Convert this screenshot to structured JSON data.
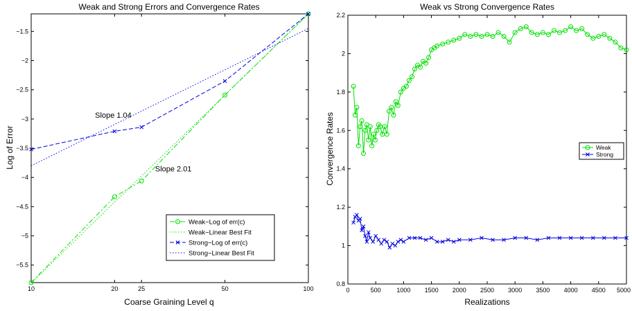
{
  "chart_data": [
    {
      "type": "line",
      "title": "Weak and Strong Errors and Convergence Rates",
      "xlabel": "Coarse Graining Level q",
      "ylabel": "Log of Error",
      "xscale": "log",
      "xlim": [
        10,
        100
      ],
      "ylim": [
        -5.8,
        -1.2
      ],
      "xticks": [
        10,
        20,
        25,
        50,
        100
      ],
      "yticks": [
        -5.5,
        -5,
        -4.5,
        -4,
        -3.5,
        -3,
        -2.5,
        -2,
        -1.5
      ],
      "grid": false,
      "legend_position": "bottom-right",
      "annotations": [
        {
          "text": "Slope 1.04",
          "x": 17,
          "y": -2.98
        },
        {
          "text": "Slope 2.01",
          "x": 28,
          "y": -3.9
        }
      ],
      "series": [
        {
          "name": "Weak−Log of err(c)",
          "x": [
            10,
            20,
            25,
            50,
            100
          ],
          "y": [
            -5.8,
            -4.33,
            -4.06,
            -2.59,
            -1.2
          ],
          "color": "#00e000",
          "marker": "circle",
          "dash": "dashdot"
        },
        {
          "name": "Weak−Linear Best Fit",
          "x": [
            10,
            100
          ],
          "y": [
            -5.81,
            -1.2
          ],
          "color": "#00e000",
          "marker": "none",
          "dash": "dotted"
        },
        {
          "name": "Strong−Log of err(c)",
          "x": [
            10,
            20,
            25,
            50,
            100
          ],
          "y": [
            -3.52,
            -3.21,
            -3.14,
            -2.35,
            -1.2
          ],
          "color": "#0000e0",
          "marker": "x",
          "dash": "dashed"
        },
        {
          "name": "Strong−Linear Best Fit",
          "x": [
            10,
            100
          ],
          "y": [
            -3.8,
            -1.45
          ],
          "color": "#0000e0",
          "marker": "none",
          "dash": "dotted"
        }
      ]
    },
    {
      "type": "line",
      "title": "Weak vs Strong Convergence Rates",
      "xlabel": "Realizations",
      "ylabel": "Convergence Rates",
      "xlim": [
        0,
        5000
      ],
      "ylim": [
        0.8,
        2.2
      ],
      "xticks": [
        0,
        500,
        1000,
        1500,
        2000,
        2500,
        3000,
        3500,
        4000,
        4500,
        5000
      ],
      "yticks": [
        0.8,
        1,
        1.2,
        1.4,
        1.6,
        1.8,
        2,
        2.2
      ],
      "grid": false,
      "legend_position": "middle-right",
      "series": [
        {
          "name": "Weak",
          "color": "#00e000",
          "marker": "circle",
          "x": [
            100,
            130,
            160,
            190,
            220,
            250,
            280,
            310,
            340,
            370,
            400,
            430,
            460,
            490,
            520,
            550,
            580,
            620,
            660,
            700,
            740,
            780,
            820,
            860,
            900,
            950,
            1000,
            1050,
            1100,
            1150,
            1200,
            1250,
            1300,
            1350,
            1400,
            1450,
            1500,
            1550,
            1600,
            1700,
            1800,
            1900,
            2000,
            2100,
            2200,
            2300,
            2400,
            2500,
            2600,
            2700,
            2800,
            2900,
            3000,
            3100,
            3200,
            3300,
            3400,
            3500,
            3600,
            3700,
            3800,
            3900,
            4000,
            4100,
            4200,
            4300,
            4400,
            4500,
            4600,
            4700,
            4800,
            4900,
            5000
          ],
          "y": [
            1.83,
            1.68,
            1.72,
            1.52,
            1.62,
            1.65,
            1.48,
            1.6,
            1.63,
            1.55,
            1.62,
            1.52,
            1.58,
            1.55,
            1.6,
            1.63,
            1.62,
            1.58,
            1.62,
            1.58,
            1.7,
            1.72,
            1.68,
            1.75,
            1.73,
            1.8,
            1.82,
            1.83,
            1.86,
            1.88,
            1.92,
            1.94,
            1.93,
            1.96,
            1.95,
            1.98,
            2.02,
            2.03,
            2.04,
            2.05,
            2.06,
            2.07,
            2.08,
            2.1,
            2.09,
            2.1,
            2.09,
            2.1,
            2.09,
            2.11,
            2.09,
            2.06,
            2.11,
            2.13,
            2.14,
            2.11,
            2.1,
            2.11,
            2.1,
            2.12,
            2.11,
            2.12,
            2.14,
            2.12,
            2.13,
            2.1,
            2.08,
            2.09,
            2.1,
            2.08,
            2.06,
            2.03,
            2.02
          ]
        },
        {
          "name": "Strong",
          "color": "#0000e0",
          "marker": "x",
          "x": [
            100,
            130,
            160,
            190,
            220,
            250,
            280,
            310,
            340,
            370,
            400,
            450,
            500,
            550,
            600,
            650,
            700,
            750,
            800,
            850,
            900,
            950,
            1000,
            1100,
            1200,
            1300,
            1400,
            1500,
            1600,
            1700,
            1800,
            1900,
            2000,
            2200,
            2400,
            2600,
            2800,
            3000,
            3200,
            3400,
            3600,
            3800,
            4000,
            4200,
            4400,
            4600,
            4800,
            5000
          ],
          "y": [
            1.12,
            1.15,
            1.16,
            1.13,
            1.14,
            1.08,
            1.1,
            1.05,
            1.02,
            1.07,
            1.04,
            1.02,
            1.05,
            1.03,
            1.01,
            1.03,
            1.02,
            0.99,
            1.01,
            1.0,
            1.02,
            1.03,
            1.02,
            1.04,
            1.04,
            1.04,
            1.03,
            1.04,
            1.02,
            1.02,
            1.03,
            1.02,
            1.03,
            1.03,
            1.04,
            1.03,
            1.03,
            1.04,
            1.04,
            1.03,
            1.04,
            1.04,
            1.04,
            1.04,
            1.04,
            1.04,
            1.04,
            1.04
          ]
        }
      ]
    }
  ]
}
